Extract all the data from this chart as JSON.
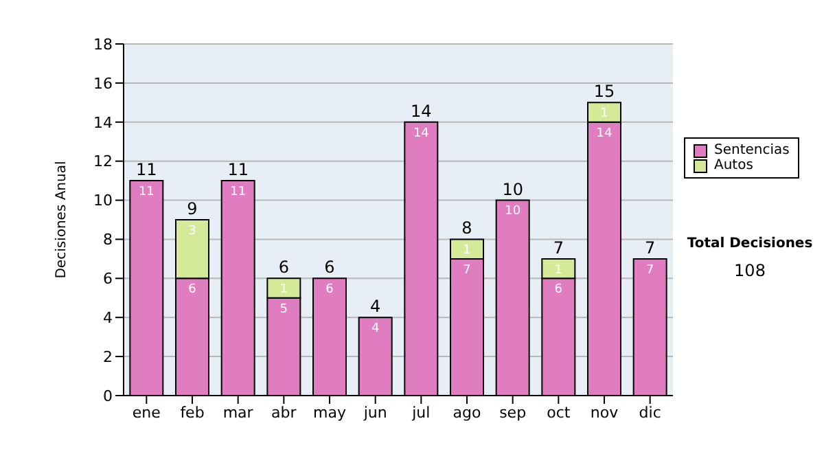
{
  "chart_data": {
    "type": "bar",
    "stacked": true,
    "ylabel": "Decisiones Anual",
    "categories": [
      "ene",
      "feb",
      "mar",
      "abr",
      "may",
      "jun",
      "jul",
      "ago",
      "sep",
      "oct",
      "nov",
      "dic"
    ],
    "series": [
      {
        "name": "Sentencias",
        "color": "#e07cc0",
        "values": [
          11,
          6,
          11,
          5,
          6,
          4,
          14,
          7,
          10,
          6,
          14,
          7
        ]
      },
      {
        "name": "Autos",
        "color": "#d4ea98",
        "values": [
          null,
          3,
          null,
          1,
          null,
          null,
          null,
          1,
          null,
          1,
          1,
          null
        ]
      }
    ],
    "data_labels": true,
    "totals": [
      "11",
      "9",
      "11",
      "6",
      "6",
      "4",
      "14",
      "8",
      "10",
      "7",
      "15",
      "7"
    ],
    "ylim": [
      0,
      18
    ],
    "yticks": [
      0,
      2,
      4,
      6,
      8,
      10,
      12,
      14,
      16,
      18
    ],
    "grid": "y",
    "legend": "right",
    "annotations": [
      "Total Decisiones",
      "108"
    ]
  }
}
